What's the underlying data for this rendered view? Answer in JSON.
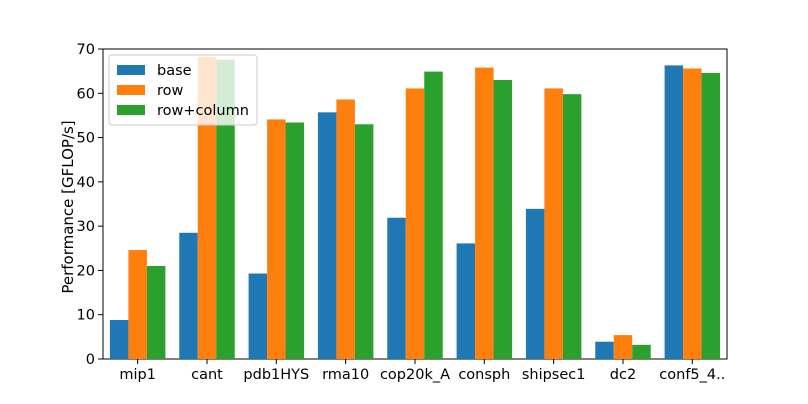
{
  "chart_data": {
    "type": "bar",
    "ylabel": "Performance [GFLOP/s]",
    "xlabel": "",
    "ylim": [
      0,
      70
    ],
    "yticks": [
      0,
      10,
      20,
      30,
      40,
      50,
      60,
      70
    ],
    "categories": [
      "mip1",
      "cant",
      "pdb1HYS",
      "rma10",
      "cop20k_A",
      "consph",
      "shipsec1",
      "dc2",
      "conf5_4.."
    ],
    "series": [
      {
        "name": "base",
        "color": "#1f77b4",
        "values": [
          8.8,
          28.5,
          19.3,
          55.7,
          31.9,
          26.1,
          33.9,
          3.9,
          66.3
        ]
      },
      {
        "name": "row",
        "color": "#ff7f0e",
        "values": [
          24.6,
          68.2,
          54.1,
          58.6,
          61.1,
          65.8,
          61.1,
          5.4,
          65.6
        ]
      },
      {
        "name": "row+column",
        "color": "#2ca02c",
        "values": [
          21.0,
          67.6,
          53.4,
          53.0,
          64.9,
          63.0,
          59.8,
          3.2,
          64.6
        ]
      }
    ],
    "legend_position": "top-left",
    "grid": false
  }
}
